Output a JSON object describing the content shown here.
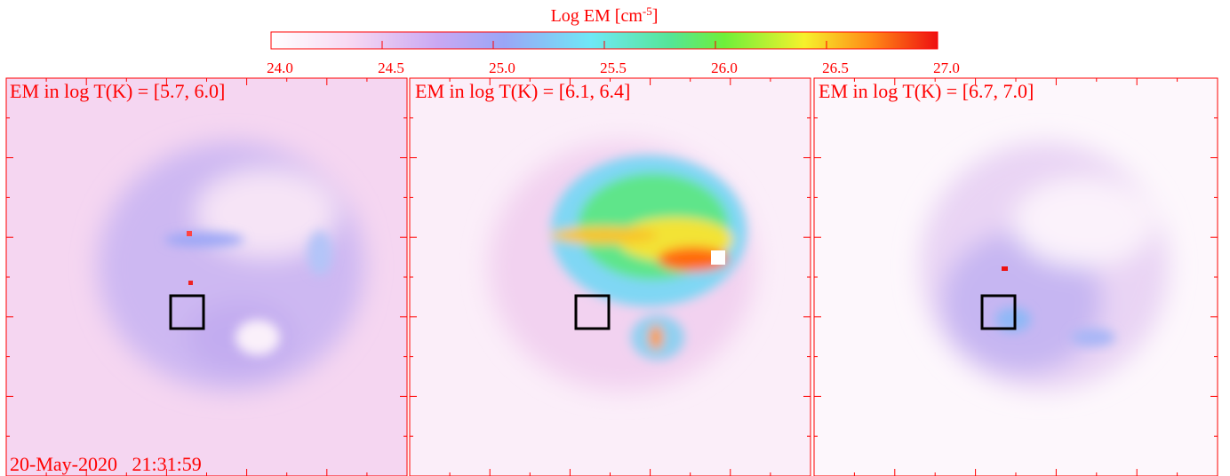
{
  "chart_data": {
    "type": "image",
    "colorbar": {
      "label": [
        "Log EM [cm",
        "-5",
        "]"
      ],
      "lim": [
        24,
        27
      ],
      "ticks": [
        {
          "value": 24,
          "label": "24.0"
        },
        {
          "value": 24.5,
          "label": "24.5"
        },
        {
          "value": 25,
          "label": "25.0"
        },
        {
          "value": 25.5,
          "label": "25.5"
        },
        {
          "value": 26,
          "label": "26.0"
        },
        {
          "value": 26.5,
          "label": "26.5"
        },
        {
          "value": 27,
          "label": "27.0"
        }
      ]
    },
    "panels": [
      {
        "label": "EM in log T(K) = [5.7, 6.0]"
      },
      {
        "label": "EM in log T(K) = [6.1, 6.4]"
      },
      {
        "label": "EM in log T(K) = [6.7, 7.0]"
      }
    ],
    "timestamp": "20-May-2020   21:31:59"
  }
}
